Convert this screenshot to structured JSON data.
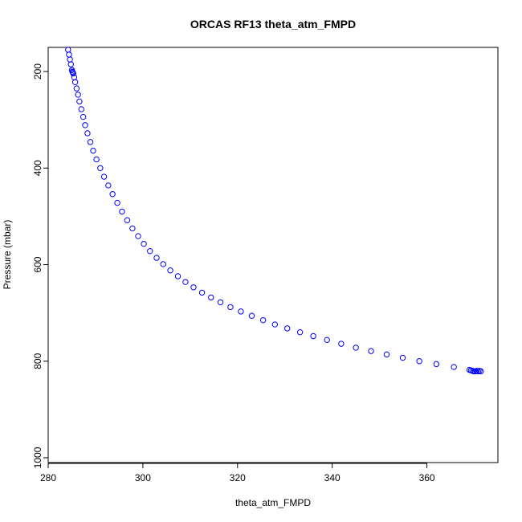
{
  "chart_data": {
    "type": "scatter",
    "title": "ORCAS RF13 theta_atm_FMPD",
    "xlabel": "theta_atm_FMPD",
    "ylabel": "Pressure (mbar)",
    "xlim": [
      280,
      375
    ],
    "ylim": [
      1010,
      150
    ],
    "y_reversed": true,
    "x_ticks": [
      280,
      300,
      320,
      340,
      360
    ],
    "y_ticks": [
      200,
      400,
      600,
      800,
      1000
    ],
    "marker": "open-circle",
    "color": "#0000ff",
    "legend": "none",
    "grid": false,
    "x": [
      284.2,
      284.4,
      284.6,
      284.8,
      285.0,
      285.1,
      285.2,
      285.3,
      285.5,
      285.7,
      286.0,
      286.3,
      286.6,
      287.0,
      287.4,
      287.8,
      288.3,
      288.9,
      289.5,
      290.2,
      291.0,
      291.8,
      292.7,
      293.6,
      294.6,
      295.6,
      296.7,
      297.8,
      299.0,
      300.2,
      301.5,
      302.9,
      304.3,
      305.8,
      307.4,
      309.0,
      310.7,
      312.5,
      314.4,
      316.4,
      318.5,
      320.7,
      323.0,
      325.4,
      327.9,
      330.5,
      333.2,
      336.0,
      338.9,
      341.9,
      345.0,
      348.2,
      351.5,
      354.9,
      358.4,
      362.0,
      365.7,
      369.0,
      369.3,
      369.6,
      369.9,
      370.2,
      370.5,
      370.8,
      371.1,
      371.4
    ],
    "y": [
      155,
      165,
      175,
      185,
      197,
      200,
      202,
      204,
      212,
      222,
      235,
      248,
      262,
      278,
      294,
      311,
      328,
      346,
      364,
      382,
      400,
      418,
      436,
      454,
      472,
      490,
      508,
      525,
      541,
      557,
      572,
      586,
      599,
      612,
      624,
      636,
      647,
      658,
      668,
      678,
      688,
      697,
      706,
      715,
      724,
      732,
      740,
      748,
      756,
      764,
      772,
      779,
      786,
      793,
      800,
      806,
      812,
      818,
      819,
      820,
      821,
      821,
      820,
      821,
      820,
      821
    ]
  }
}
